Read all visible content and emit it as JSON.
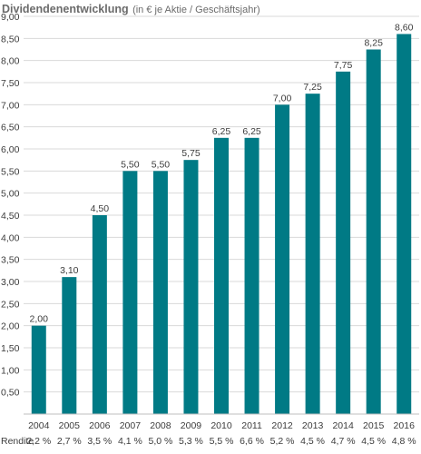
{
  "chart_data": {
    "type": "bar",
    "title": "Dividendenentwicklung",
    "subtitle": "(in € je Aktie / Geschäftsjahr)",
    "categories": [
      "2004",
      "2005",
      "2006",
      "2007",
      "2008",
      "2009",
      "2010",
      "2011",
      "2012",
      "2013",
      "2014",
      "2015",
      "2016"
    ],
    "values": [
      2.0,
      3.1,
      4.5,
      5.5,
      5.5,
      5.75,
      6.25,
      6.25,
      7.0,
      7.25,
      7.75,
      8.25,
      8.6
    ],
    "value_labels": [
      "2,00",
      "3,10",
      "4,50",
      "5,50",
      "5,50",
      "5,75",
      "6,25",
      "6,25",
      "7,00",
      "7,25",
      "7,75",
      "8,25",
      "8,60"
    ],
    "y_ticks": [
      "0,50",
      "1,00",
      "1,50",
      "2,00",
      "2,50",
      "3,00",
      "3,50",
      "4,00",
      "4,50",
      "5,00",
      "5,50",
      "6,00",
      "6,50",
      "7,00",
      "7,50",
      "8,00",
      "8,50",
      "9,00"
    ],
    "ylim": [
      0,
      9
    ],
    "grid": true,
    "bar_color": "#007a85",
    "rendite": {
      "label": "Rendite",
      "values": [
        "2,2 %",
        "2,7 %",
        "3,5 %",
        "4,1 %",
        "5,0 %",
        "5,3 %",
        "5,5 %",
        "6,6 %",
        "5,2 %",
        "4,5 %",
        "4,7 %",
        "4,5 %",
        "4,8 %"
      ]
    }
  }
}
